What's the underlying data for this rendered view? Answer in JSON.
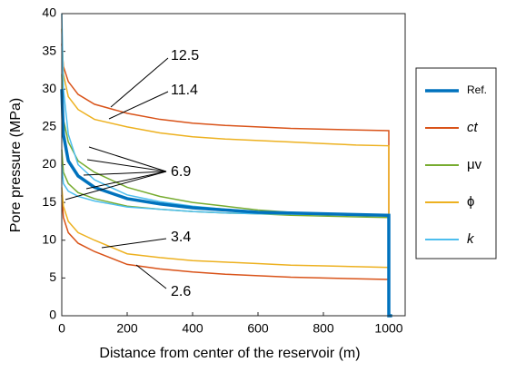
{
  "chart_data": {
    "type": "line",
    "x_label": "Distance from center of the reservoir (m)",
    "y_label": "Pore pressure (MPa)",
    "x": [
      0,
      5,
      20,
      50,
      100,
      200,
      300,
      400,
      500,
      600,
      700,
      800,
      900,
      1000,
      1000,
      1010
    ],
    "series": [
      {
        "name": "ct",
        "color": "#D95319",
        "values": [
          36,
          33,
          31,
          29.3,
          28,
          26.8,
          26,
          25.5,
          25.2,
          25,
          24.8,
          24.7,
          24.6,
          24.5,
          0,
          0
        ]
      },
      {
        "name": "ct",
        "color": "#D95319",
        "values": [
          16,
          13,
          11,
          9.6,
          8.5,
          6.8,
          6.2,
          5.8,
          5.5,
          5.3,
          5.1,
          5,
          4.9,
          4.8,
          0,
          0
        ]
      },
      {
        "name": "ϕ",
        "color": "#EDB120",
        "values": [
          38,
          32,
          29,
          27.3,
          26,
          25,
          24.2,
          23.7,
          23.4,
          23.2,
          23,
          22.8,
          22.6,
          22.5,
          0,
          0
        ]
      },
      {
        "name": "ϕ",
        "color": "#EDB120",
        "values": [
          17,
          14.5,
          12.5,
          11,
          10,
          8.2,
          7.7,
          7.3,
          7.1,
          6.9,
          6.7,
          6.6,
          6.5,
          6.4,
          0,
          0
        ]
      },
      {
        "name": "μv",
        "color": "#77AC30",
        "values": [
          32,
          26,
          23,
          20.5,
          19,
          17,
          15.8,
          15,
          14.5,
          14,
          13.7,
          13.5,
          13.3,
          13.2,
          0,
          0
        ]
      },
      {
        "name": "μv",
        "color": "#77AC30",
        "values": [
          22,
          19,
          17.5,
          16.3,
          15.5,
          14.5,
          14.1,
          13.8,
          13.6,
          13.5,
          13.3,
          13.2,
          13.1,
          13,
          0,
          0
        ]
      },
      {
        "name": "k",
        "color": "#4DBEEE",
        "values": [
          40,
          30,
          24,
          20,
          18,
          16,
          15.1,
          14.5,
          14.1,
          13.8,
          13.6,
          13.5,
          13.4,
          13.4,
          0,
          0
        ]
      },
      {
        "name": "k",
        "color": "#4DBEEE",
        "values": [
          20,
          17.5,
          16.5,
          15.8,
          15.2,
          14.4,
          14.1,
          13.8,
          13.6,
          13.5,
          13.45,
          13.4,
          13.4,
          13.4,
          0,
          0
        ]
      },
      {
        "name": "Ref.",
        "color": "#0072BD",
        "values": [
          30,
          24,
          20.5,
          18.5,
          17,
          15.5,
          14.8,
          14.3,
          14,
          13.7,
          13.6,
          13.5,
          13.4,
          13.3,
          0,
          0
        ]
      }
    ],
    "legend_order": [
      "Ref.",
      "ct",
      "μv",
      "ϕ",
      "k"
    ],
    "annotations": [
      "12.5",
      "11.4",
      "6.9",
      "3.4",
      "2.6"
    ],
    "xlim": [
      0,
      1050
    ],
    "xticks": [
      0,
      200,
      400,
      600,
      800,
      1000
    ],
    "ylim": [
      0,
      40
    ],
    "yticks": [
      0,
      5,
      10,
      15,
      20,
      25,
      30,
      35,
      40
    ],
    "grid": false,
    "legend": "right"
  }
}
